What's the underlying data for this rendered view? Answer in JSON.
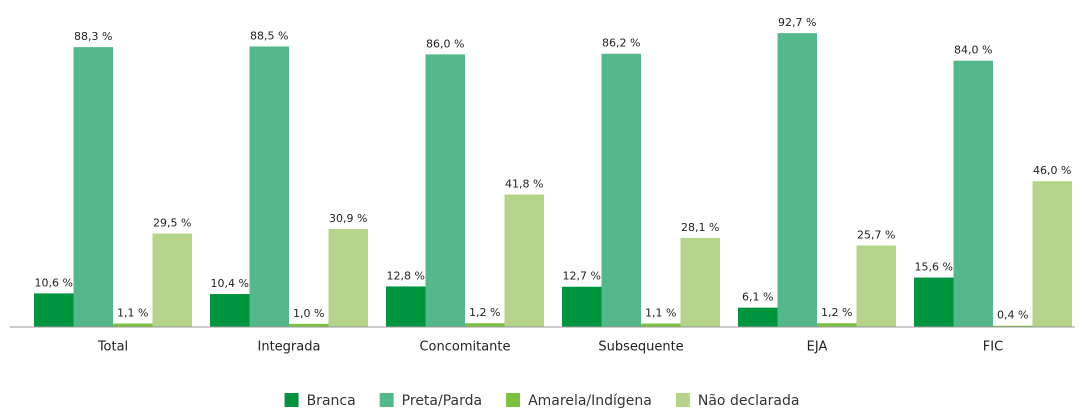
{
  "chart_data": {
    "type": "bar",
    "categories": [
      "Total",
      "Integrada",
      "Concomitante",
      "Subsequente",
      "EJA",
      "FIC"
    ],
    "series": [
      {
        "name": "Branca",
        "color": "#00943f",
        "values": [
          10.6,
          10.4,
          12.8,
          12.7,
          6.1,
          15.6
        ],
        "value_labels": [
          "10,6 %",
          "10,4 %",
          "12,8 %",
          "12,7 %",
          "6,1 %",
          "15,6 %"
        ]
      },
      {
        "name": "Preta/Parda",
        "color": "#54b88a",
        "values": [
          88.3,
          88.5,
          86.0,
          86.2,
          92.7,
          84.0
        ],
        "value_labels": [
          "88,3 %",
          "88,5 %",
          "86,0 %",
          "86,2 %",
          "92,7 %",
          "84,0 %"
        ]
      },
      {
        "name": "Amarela/Indígena",
        "color": "#7cc242",
        "values": [
          1.1,
          1.0,
          1.2,
          1.1,
          1.2,
          0.4
        ],
        "value_labels": [
          "1,1 %",
          "1,0 %",
          "1,2 %",
          "1,1 %",
          "1,2 %",
          "0,4 %"
        ]
      },
      {
        "name": "Não declarada",
        "color": "#b5d48a",
        "values": [
          29.5,
          30.9,
          41.8,
          28.1,
          25.7,
          46.0
        ],
        "value_labels": [
          "29,5 %",
          "30,9 %",
          "41,8 %",
          "28,1 %",
          "25,7 %",
          "46,0 %"
        ]
      }
    ],
    "ylim": [
      0,
      100
    ]
  }
}
